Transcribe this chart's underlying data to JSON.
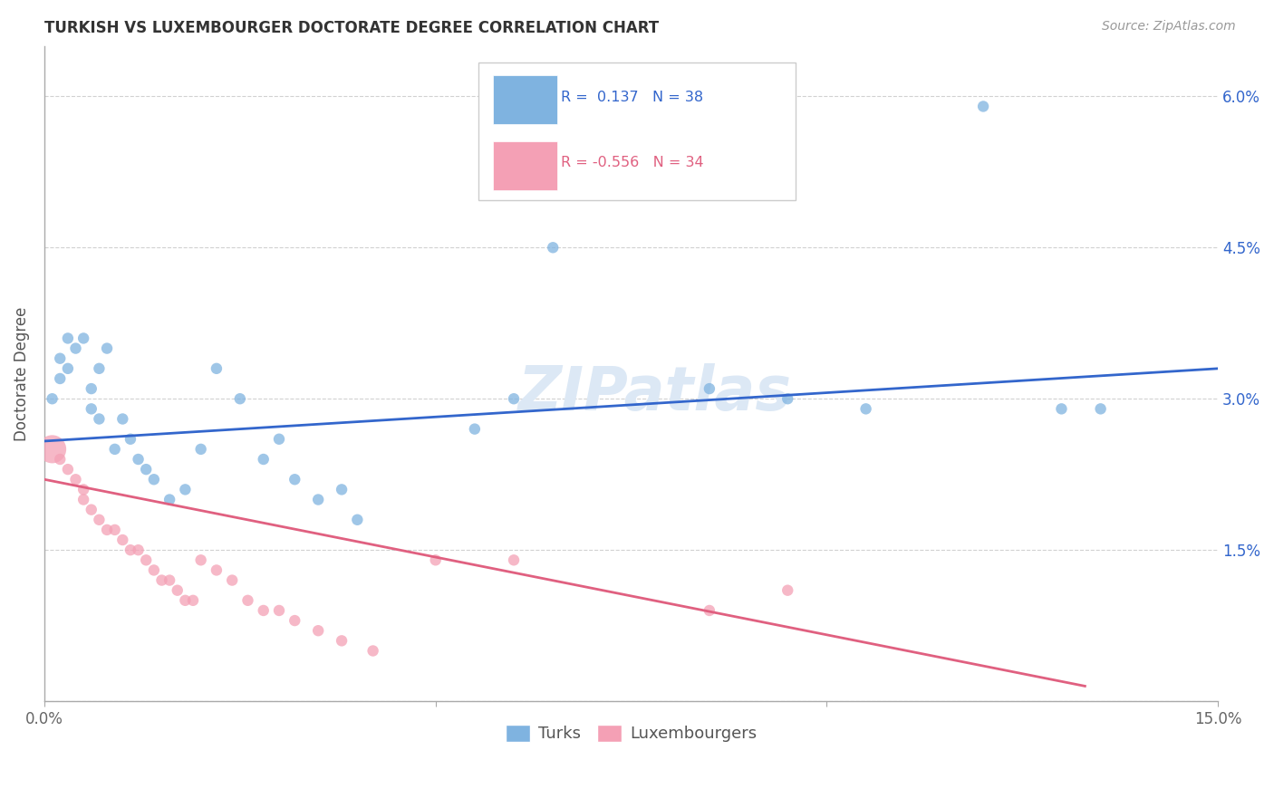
{
  "title": "TURKISH VS LUXEMBOURGER DOCTORATE DEGREE CORRELATION CHART",
  "source": "Source: ZipAtlas.com",
  "ylabel": "Doctorate Degree",
  "xlim": [
    0.0,
    0.15
  ],
  "ylim": [
    0.0,
    0.065
  ],
  "ytick_vals": [
    0.0,
    0.015,
    0.03,
    0.045,
    0.06
  ],
  "ytick_labels": [
    "",
    "1.5%",
    "3.0%",
    "4.5%",
    "6.0%"
  ],
  "background_color": "#ffffff",
  "blue_color": "#7fb3e0",
  "pink_color": "#f4a0b5",
  "blue_line_color": "#3366cc",
  "pink_line_color": "#e06080",
  "watermark_color": "#dce8f5",
  "grid_color": "#cccccc",
  "blue_R": "0.137",
  "blue_N": "38",
  "pink_R": "-0.556",
  "pink_N": "34",
  "blue_line_x": [
    0.0,
    0.15
  ],
  "blue_line_y": [
    0.0258,
    0.033
  ],
  "pink_line_x": [
    0.0,
    0.133
  ],
  "pink_line_y": [
    0.022,
    0.0015
  ],
  "turks_x": [
    0.001,
    0.002,
    0.002,
    0.003,
    0.003,
    0.004,
    0.005,
    0.006,
    0.006,
    0.007,
    0.007,
    0.008,
    0.009,
    0.01,
    0.011,
    0.012,
    0.013,
    0.014,
    0.016,
    0.018,
    0.02,
    0.022,
    0.025,
    0.028,
    0.03,
    0.032,
    0.035,
    0.038,
    0.04,
    0.055,
    0.06,
    0.065,
    0.085,
    0.095,
    0.105,
    0.12,
    0.13,
    0.135
  ],
  "turks_y": [
    0.03,
    0.034,
    0.032,
    0.036,
    0.033,
    0.035,
    0.036,
    0.031,
    0.029,
    0.033,
    0.028,
    0.035,
    0.025,
    0.028,
    0.026,
    0.024,
    0.023,
    0.022,
    0.02,
    0.021,
    0.025,
    0.033,
    0.03,
    0.024,
    0.026,
    0.022,
    0.02,
    0.021,
    0.018,
    0.027,
    0.03,
    0.045,
    0.031,
    0.03,
    0.029,
    0.059,
    0.029,
    0.029
  ],
  "turks_sizes": [
    80,
    80,
    80,
    80,
    80,
    80,
    80,
    80,
    80,
    80,
    80,
    80,
    80,
    80,
    80,
    80,
    80,
    80,
    80,
    80,
    80,
    80,
    80,
    80,
    80,
    80,
    80,
    80,
    80,
    80,
    80,
    80,
    80,
    80,
    80,
    80,
    80,
    80
  ],
  "lux_x": [
    0.001,
    0.002,
    0.003,
    0.004,
    0.005,
    0.005,
    0.006,
    0.007,
    0.008,
    0.009,
    0.01,
    0.011,
    0.012,
    0.013,
    0.014,
    0.015,
    0.016,
    0.017,
    0.018,
    0.019,
    0.02,
    0.022,
    0.024,
    0.026,
    0.028,
    0.03,
    0.032,
    0.035,
    0.038,
    0.042,
    0.05,
    0.06,
    0.085,
    0.095
  ],
  "lux_y": [
    0.025,
    0.024,
    0.023,
    0.022,
    0.021,
    0.02,
    0.019,
    0.018,
    0.017,
    0.017,
    0.016,
    0.015,
    0.015,
    0.014,
    0.013,
    0.012,
    0.012,
    0.011,
    0.01,
    0.01,
    0.014,
    0.013,
    0.012,
    0.01,
    0.009,
    0.009,
    0.008,
    0.007,
    0.006,
    0.005,
    0.014,
    0.014,
    0.009,
    0.011
  ],
  "lux_sizes": [
    500,
    80,
    80,
    80,
    80,
    80,
    80,
    80,
    80,
    80,
    80,
    80,
    80,
    80,
    80,
    80,
    80,
    80,
    80,
    80,
    80,
    80,
    80,
    80,
    80,
    80,
    80,
    80,
    80,
    80,
    80,
    80,
    80,
    80
  ]
}
